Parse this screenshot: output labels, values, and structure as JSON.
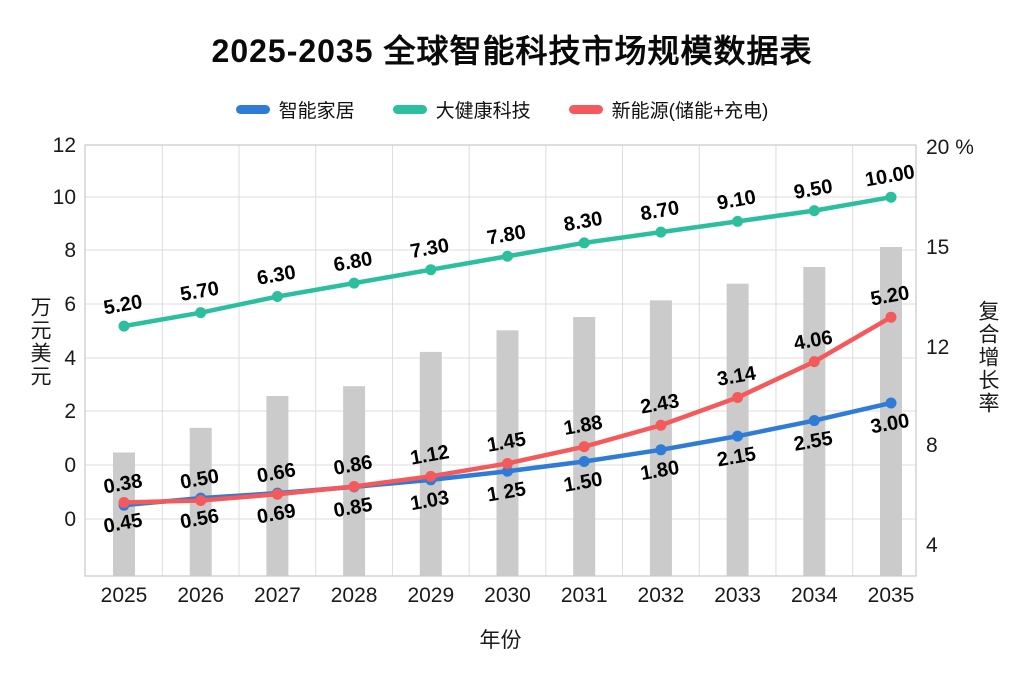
{
  "title": "2025-2035 全球智能科技市场规模数据表",
  "legend": [
    {
      "label": "智能家居",
      "color": "#2E7CD6"
    },
    {
      "label": "大健康科技",
      "color": "#2CBF9E"
    },
    {
      "label": "新能源(储能+充电)",
      "color": "#F4595B"
    }
  ],
  "axes": {
    "left": {
      "title": "万元美元",
      "ticks": [
        "12",
        "10",
        "8",
        "6",
        "4",
        "2",
        "0",
        "0"
      ]
    },
    "right": {
      "title": "复合增长率",
      "ticks": [
        "20 %",
        "15",
        "12",
        "8",
        "4"
      ]
    },
    "x": {
      "title": "年份"
    }
  },
  "chart_data": {
    "type": "combo: line + bar",
    "title": "2025-2035 全球智能科技市场规模数据表",
    "xlabel": "年份",
    "ylabel_left": "万元美元",
    "ylabel_right": "复合增长率",
    "left_axis_tick_labels": [
      "12",
      "10",
      "8",
      "6",
      "4",
      "2",
      "0",
      "0"
    ],
    "right_axis_tick_labels": [
      "20 %",
      "15",
      "12",
      "8",
      "4"
    ],
    "left_ylim": [
      0,
      12
    ],
    "right_ylim": [
      4,
      20
    ],
    "grid": true,
    "legend_position": "top",
    "categories": [
      "2025",
      "2026",
      "2027",
      "2028",
      "2029",
      "2030",
      "2031",
      "2032",
      "2033",
      "2034",
      "2035"
    ],
    "series": [
      {
        "name": "智能家居",
        "chart": "line",
        "axis": "left",
        "color": "#2E7CD6",
        "values": [
          0.38,
          0.56,
          0.69,
          0.85,
          1.03,
          1.25,
          1.5,
          1.8,
          2.15,
          2.55,
          3.0
        ],
        "point_labels": [
          "0.38",
          "0.56",
          "0.69",
          "0.85",
          "1.03",
          "1 25",
          "1.50",
          "1.80",
          "2.15",
          "2.55",
          "3.00"
        ]
      },
      {
        "name": "大健康科技",
        "chart": "line",
        "axis": "left",
        "color": "#2CBF9E",
        "values": [
          5.2,
          5.7,
          6.3,
          6.8,
          7.3,
          7.8,
          8.3,
          8.7,
          9.1,
          9.5,
          10.0
        ],
        "point_labels": [
          "5.20",
          "5.70",
          "6.30",
          "6.80",
          "7.30",
          "7.80",
          "8.30",
          "8.70",
          "9.10",
          "9.50",
          "10.00"
        ]
      },
      {
        "name": "新能源(储能+充电)",
        "chart": "line",
        "axis": "left",
        "color": "#F4595B",
        "values": [
          0.45,
          0.5,
          0.66,
          0.86,
          1.12,
          1.45,
          1.88,
          2.43,
          3.14,
          4.06,
          5.2
        ],
        "point_labels": [
          "0.45",
          "0.50",
          "0.66",
          "0.86",
          "1.12",
          "1.45",
          "1.88",
          "2.43",
          "3.14",
          "4.06",
          "5.20"
        ]
      },
      {
        "name": "复合增长率",
        "chart": "bar",
        "axis": "right",
        "color": "#CBCBCB",
        "values": [
          7.7,
          8.7,
          10.0,
          10.4,
          11.8,
          12.5,
          12.9,
          13.4,
          13.9,
          14.4,
          15.0
        ]
      }
    ]
  }
}
